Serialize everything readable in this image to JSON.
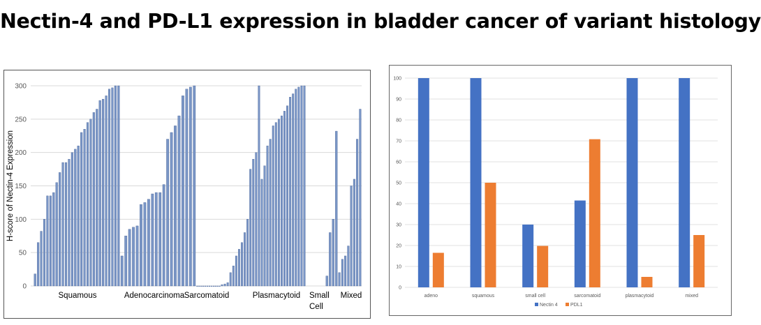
{
  "title": "Nectin-4 and PD-L1 expression in bladder cancer of variant histology",
  "colors": {
    "left_bar": "#7a96c6",
    "left_bar_edge": "#3e5b92",
    "nectin4": "#4472c4",
    "pdl1": "#ed7d31",
    "grid": "#d9d9d9"
  },
  "chart_data": [
    {
      "type": "bar",
      "title": "",
      "ylabel": "H-score of Nectin-4 Expression",
      "xlabel": "",
      "ylim": [
        0,
        300
      ],
      "yticks": [
        0,
        50,
        100,
        150,
        200,
        250,
        300
      ],
      "ytick_labels": [
        "0",
        "50",
        "100",
        "150",
        "200",
        "250",
        "300"
      ],
      "grid": true,
      "legend": "none",
      "groups": [
        {
          "name": "Squamous",
          "values": [
            18,
            65,
            82,
            100,
            135,
            135,
            140,
            155,
            170,
            185,
            185,
            190,
            200,
            205,
            210,
            230,
            235,
            245,
            250,
            260,
            265,
            278,
            280,
            285,
            295,
            297,
            300,
            300
          ]
        },
        {
          "name": "Adenocarcinoma",
          "values": [
            45,
            75,
            85,
            88,
            90,
            122,
            125,
            130,
            138,
            140,
            140,
            152,
            220,
            230,
            240,
            255,
            285,
            295,
            298,
            300
          ]
        },
        {
          "name": "Sarcomatoid",
          "values": [
            0,
            0,
            0,
            0,
            0,
            0,
            0,
            0,
            0,
            0,
            0,
            0
          ]
        },
        {
          "name": "Plasmacytoid",
          "values": [
            2,
            3,
            5,
            20,
            30,
            45,
            55,
            65,
            80,
            100,
            175,
            190,
            200,
            300,
            160,
            180,
            210,
            220,
            240,
            245,
            250,
            255,
            262,
            270,
            283,
            288,
            295,
            298,
            300,
            300
          ]
        },
        {
          "name": "Small\nCell",
          "values": [
            15,
            80,
            100,
            232
          ]
        },
        {
          "name": "Mixed",
          "values": [
            20,
            40,
            45,
            60,
            150,
            160,
            220,
            265
          ]
        }
      ]
    },
    {
      "type": "bar",
      "title": "",
      "xlabel": "",
      "ylabel": "",
      "ylim": [
        0,
        100
      ],
      "yticks": [
        0,
        10,
        20,
        30,
        40,
        50,
        60,
        70,
        80,
        90,
        100
      ],
      "ytick_labels": [
        "0",
        "10",
        "20",
        "30",
        "40",
        "50",
        "60",
        "70",
        "80",
        "90",
        "100"
      ],
      "grid": true,
      "legend": "bottom-center",
      "categories": [
        "adeno",
        "squamous",
        "small cell",
        "sarcomatoid",
        "plasmacytoid",
        "mixed"
      ],
      "series": [
        {
          "name": "Nectin 4",
          "values": [
            100,
            100,
            30,
            41.5,
            100,
            100
          ]
        },
        {
          "name": "PDL1",
          "values": [
            16.5,
            50,
            19.8,
            70.8,
            5,
            25
          ]
        }
      ]
    }
  ]
}
